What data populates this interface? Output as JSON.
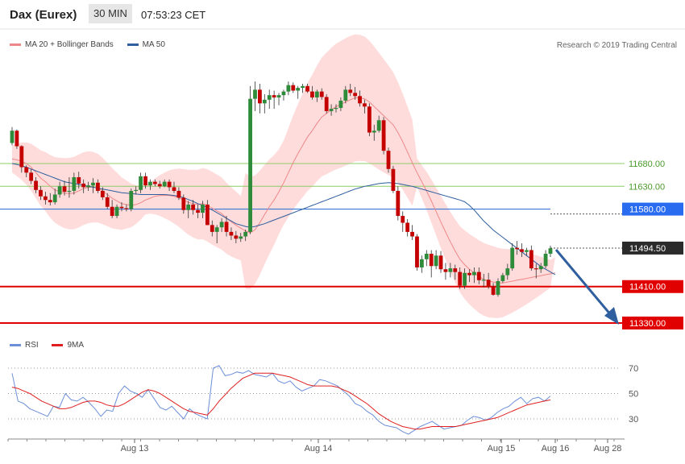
{
  "header": {
    "symbol": "Dax (Eurex)",
    "timeframe": "30 MIN",
    "time": "07:53:23 CET"
  },
  "legend": {
    "bands": "MA 20 + Bollinger Bands",
    "ma50": "MA 50",
    "credit": "Research © 2019 Trading Central"
  },
  "rsi_legend": {
    "rsi": "RSI",
    "ma9": "9MA"
  },
  "colors": {
    "up": "#2e8b3a",
    "down": "#c40000",
    "bands_fill": "#ffd6d6",
    "ma20": "#ee8888",
    "ma50": "#2f5f9e",
    "green_line": "#8ccc66",
    "blue_line": "#3a78d8",
    "red_line": "#e00000",
    "rsi": "#6b8fd8",
    "rsi_ma": "#e02020",
    "arrow": "#2f5f9e"
  },
  "chart_data": [
    {
      "type": "candlestick",
      "title": "Dax (Eurex) 30 MIN",
      "ylim": [
        11230,
        11925
      ],
      "x_ticks": [
        "Aug 13",
        "Aug 14",
        "Aug 15",
        "Aug 16",
        "Aug 28"
      ],
      "levels": [
        {
          "value": 11680.0,
          "label": "11680.00",
          "style": "green"
        },
        {
          "value": 11630.0,
          "label": "11630.00",
          "style": "green"
        },
        {
          "value": 11580.0,
          "label": "11580.00",
          "style": "blue"
        },
        {
          "value": 11494.5,
          "label": "11494.50",
          "style": "current"
        },
        {
          "value": 11410.0,
          "label": "11410.00",
          "style": "red"
        },
        {
          "value": 11330.0,
          "label": "11330.00",
          "style": "red"
        }
      ],
      "candles": [
        [
          11725,
          11760,
          11720,
          11752
        ],
        [
          11752,
          11755,
          11712,
          11718
        ],
        [
          11718,
          11720,
          11660,
          11672
        ],
        [
          11672,
          11676,
          11650,
          11660
        ],
        [
          11660,
          11668,
          11635,
          11642
        ],
        [
          11642,
          11650,
          11615,
          11622
        ],
        [
          11622,
          11630,
          11600,
          11608
        ],
        [
          11608,
          11618,
          11590,
          11600
        ],
        [
          11600,
          11615,
          11588,
          11595
        ],
        [
          11595,
          11625,
          11590,
          11612
        ],
        [
          11612,
          11640,
          11605,
          11630
        ],
        [
          11630,
          11642,
          11610,
          11618
        ],
        [
          11618,
          11650,
          11605,
          11620
        ],
        [
          11620,
          11660,
          11612,
          11650
        ],
        [
          11650,
          11662,
          11625,
          11636
        ],
        [
          11636,
          11645,
          11615,
          11628
        ],
        [
          11628,
          11640,
          11620,
          11632
        ],
        [
          11632,
          11648,
          11615,
          11638
        ],
        [
          11638,
          11645,
          11615,
          11620
        ],
        [
          11620,
          11628,
          11600,
          11606
        ],
        [
          11606,
          11615,
          11580,
          11585
        ],
        [
          11585,
          11600,
          11560,
          11565
        ],
        [
          11565,
          11590,
          11560,
          11585
        ],
        [
          11585,
          11595,
          11575,
          11582
        ],
        [
          11582,
          11590,
          11575,
          11580
        ],
        [
          11580,
          11625,
          11575,
          11620
        ],
        [
          11620,
          11630,
          11612,
          11622
        ],
        [
          11622,
          11660,
          11615,
          11652
        ],
        [
          11652,
          11660,
          11625,
          11632
        ],
        [
          11632,
          11645,
          11622,
          11640
        ],
        [
          11640,
          11645,
          11630,
          11635
        ],
        [
          11635,
          11642,
          11625,
          11630
        ],
        [
          11630,
          11645,
          11628,
          11640
        ],
        [
          11640,
          11645,
          11620,
          11628
        ],
        [
          11628,
          11640,
          11615,
          11620
        ],
        [
          11620,
          11628,
          11600,
          11605
        ],
        [
          11605,
          11612,
          11570,
          11578
        ],
        [
          11578,
          11598,
          11560,
          11590
        ],
        [
          11590,
          11600,
          11568,
          11578
        ],
        [
          11578,
          11590,
          11560,
          11572
        ],
        [
          11572,
          11598,
          11560,
          11590
        ],
        [
          11590,
          11600,
          11545,
          11545
        ],
        [
          11545,
          11555,
          11520,
          11530
        ],
        [
          11530,
          11545,
          11505,
          11540
        ],
        [
          11540,
          11560,
          11530,
          11552
        ],
        [
          11552,
          11565,
          11520,
          11530
        ],
        [
          11530,
          11540,
          11512,
          11522
        ],
        [
          11522,
          11532,
          11505,
          11515
        ],
        [
          11515,
          11528,
          11508,
          11520
        ],
        [
          11520,
          11535,
          11510,
          11530
        ],
        [
          11530,
          11850,
          11525,
          11822
        ],
        [
          11822,
          11860,
          11795,
          11842
        ],
        [
          11842,
          11855,
          11790,
          11812
        ],
        [
          11812,
          11832,
          11790,
          11820
        ],
        [
          11820,
          11842,
          11800,
          11830
        ],
        [
          11830,
          11840,
          11800,
          11825
        ],
        [
          11825,
          11835,
          11808,
          11830
        ],
        [
          11830,
          11842,
          11818,
          11838
        ],
        [
          11838,
          11860,
          11830,
          11852
        ],
        [
          11852,
          11858,
          11835,
          11840
        ],
        [
          11840,
          11850,
          11822,
          11846
        ],
        [
          11846,
          11855,
          11835,
          11850
        ],
        [
          11850,
          11855,
          11835,
          11838
        ],
        [
          11838,
          11850,
          11820,
          11825
        ],
        [
          11825,
          11842,
          11815,
          11838
        ],
        [
          11838,
          11845,
          11820,
          11826
        ],
        [
          11826,
          11832,
          11790,
          11795
        ],
        [
          11795,
          11810,
          11785,
          11800
        ],
        [
          11800,
          11810,
          11792,
          11802
        ],
        [
          11802,
          11825,
          11795,
          11818
        ],
        [
          11818,
          11850,
          11812,
          11842
        ],
        [
          11842,
          11855,
          11828,
          11835
        ],
        [
          11835,
          11848,
          11820,
          11828
        ],
        [
          11828,
          11840,
          11805,
          11812
        ],
        [
          11812,
          11820,
          11790,
          11805
        ],
        [
          11805,
          11812,
          11740,
          11748
        ],
        [
          11748,
          11765,
          11730,
          11752
        ],
        [
          11752,
          11785,
          11748,
          11775
        ],
        [
          11775,
          11782,
          11700,
          11708
        ],
        [
          11708,
          11715,
          11660,
          11668
        ],
        [
          11668,
          11675,
          11615,
          11620
        ],
        [
          11620,
          11630,
          11555,
          11565
        ],
        [
          11565,
          11575,
          11530,
          11550
        ],
        [
          11550,
          11558,
          11520,
          11530
        ],
        [
          11530,
          11545,
          11512,
          11520
        ],
        [
          11520,
          11525,
          11445,
          11452
        ],
        [
          11452,
          11478,
          11440,
          11470
        ],
        [
          11470,
          11490,
          11455,
          11482
        ],
        [
          11482,
          11490,
          11430,
          11455
        ],
        [
          11455,
          11490,
          11448,
          11478
        ],
        [
          11478,
          11488,
          11440,
          11448
        ],
        [
          11448,
          11462,
          11425,
          11442
        ],
        [
          11442,
          11462,
          11430,
          11450
        ],
        [
          11450,
          11458,
          11425,
          11442
        ],
        [
          11442,
          11452,
          11405,
          11412
        ],
        [
          11412,
          11450,
          11405,
          11440
        ],
        [
          11440,
          11448,
          11420,
          11435
        ],
        [
          11435,
          11452,
          11418,
          11442
        ],
        [
          11442,
          11452,
          11415,
          11424
        ],
        [
          11424,
          11438,
          11408,
          11425
        ],
        [
          11425,
          11440,
          11405,
          11410
        ],
        [
          11410,
          11418,
          11390,
          11392
        ],
        [
          11392,
          11428,
          11388,
          11422
        ],
        [
          11422,
          11440,
          11418,
          11435
        ],
        [
          11435,
          11460,
          11425,
          11450
        ],
        [
          11450,
          11505,
          11445,
          11495
        ],
        [
          11495,
          11510,
          11480,
          11492
        ],
        [
          11492,
          11505,
          11475,
          11486
        ],
        [
          11486,
          11495,
          11478,
          11490
        ],
        [
          11490,
          11500,
          11445,
          11450
        ],
        [
          11450,
          11460,
          11428,
          11448
        ],
        [
          11448,
          11462,
          11440,
          11455
        ],
        [
          11455,
          11490,
          11450,
          11482
        ],
        [
          11482,
          11500,
          11475,
          11494
        ]
      ],
      "ma20": [
        11690,
        11688,
        11685,
        11680,
        11672,
        11660,
        11648,
        11640,
        11630,
        11622,
        11618,
        11615,
        11614,
        11615,
        11620,
        11625,
        11628,
        11628,
        11626,
        11620,
        11612,
        11604,
        11598,
        11592,
        11590,
        11588,
        11590,
        11594,
        11600,
        11604,
        11608,
        11610,
        11610,
        11610,
        11608,
        11605,
        11600,
        11595,
        11592,
        11590,
        11592,
        11588,
        11582,
        11576,
        11570,
        11560,
        11552,
        11545,
        11538,
        11532,
        11528,
        11535,
        11550,
        11568,
        11585,
        11600,
        11618,
        11638,
        11660,
        11682,
        11702,
        11720,
        11738,
        11752,
        11768,
        11782,
        11790,
        11798,
        11805,
        11810,
        11815,
        11820,
        11824,
        11824,
        11822,
        11815,
        11805,
        11795,
        11785,
        11775,
        11765,
        11748,
        11728,
        11705,
        11682,
        11660,
        11640,
        11620,
        11598,
        11575,
        11552,
        11530,
        11508,
        11488,
        11470,
        11458,
        11448,
        11440,
        11432,
        11426,
        11422,
        11420,
        11418,
        11418,
        11420,
        11422,
        11424,
        11426,
        11428,
        11430,
        11432,
        11434,
        11436,
        11438,
        11440
      ],
      "ma50": [
        11680,
        11678,
        11675,
        11672,
        11668,
        11664,
        11660,
        11656,
        11652,
        11648,
        11644,
        11640,
        11638,
        11636,
        11634,
        11632,
        11630,
        11628,
        11626,
        11624,
        11622,
        11620,
        11618,
        11616,
        11615,
        11614,
        11613,
        11612,
        11612,
        11612,
        11612,
        11612,
        11612,
        11611,
        11610,
        11608,
        11605,
        11601,
        11597,
        11592,
        11588,
        11583,
        11578,
        11572,
        11566,
        11560,
        11554,
        11548,
        11545,
        11542,
        11540,
        11542,
        11545,
        11548,
        11552,
        11556,
        11560,
        11564,
        11568,
        11572,
        11576,
        11580,
        11584,
        11588,
        11592,
        11596,
        11600,
        11604,
        11608,
        11612,
        11616,
        11620,
        11624,
        11627,
        11630,
        11632,
        11634,
        11636,
        11637,
        11638,
        11637,
        11636,
        11634,
        11632,
        11630,
        11627,
        11624,
        11621,
        11618,
        11615,
        11612,
        11609,
        11606,
        11603,
        11600,
        11596,
        11588,
        11578,
        11566,
        11554,
        11544,
        11534,
        11526,
        11518,
        11510,
        11502,
        11494,
        11486,
        11478,
        11470,
        11462,
        11454,
        11448,
        11442,
        11436
      ]
    },
    {
      "type": "line",
      "title": "RSI",
      "ylim": [
        15,
        80
      ],
      "y_ticks": [
        "70",
        "50",
        "30"
      ],
      "series": [
        {
          "name": "RSI",
          "values": [
            66,
            44,
            42,
            38,
            36,
            34,
            32,
            40,
            39,
            50,
            45,
            44,
            47,
            43,
            38,
            32,
            37,
            36,
            50,
            56,
            52,
            50,
            47,
            53,
            46,
            39,
            37,
            40,
            35,
            30,
            38,
            34,
            32,
            30,
            70,
            72,
            64,
            65,
            67,
            66,
            68,
            65,
            64,
            63,
            66,
            60,
            58,
            60,
            55,
            52,
            54,
            56,
            61,
            60,
            58,
            56,
            52,
            48,
            42,
            40,
            36,
            33,
            28,
            25,
            24,
            23,
            20,
            18,
            21,
            24,
            26,
            28,
            25,
            22,
            23,
            24,
            25,
            29,
            32,
            31,
            29,
            31,
            35,
            38,
            40,
            44,
            47,
            42,
            46,
            47,
            44,
            48
          ],
          "series_note_": ""
        },
        {
          "name": "9MA",
          "values": [
            55,
            54,
            52,
            50,
            47,
            44,
            42,
            40,
            38,
            38,
            39,
            41,
            43,
            44,
            44,
            43,
            41,
            40,
            40,
            42,
            45,
            48,
            51,
            53,
            52,
            50,
            47,
            44,
            41,
            38,
            36,
            35,
            34,
            33,
            38,
            44,
            49,
            54,
            58,
            62,
            64,
            66,
            66,
            66,
            66,
            65,
            64,
            63,
            61,
            59,
            57,
            56,
            56,
            56,
            56,
            55,
            53,
            51,
            48,
            45,
            42,
            38,
            34,
            31,
            28,
            26,
            24,
            23,
            22,
            22,
            23,
            24,
            24,
            24,
            24,
            24,
            25,
            26,
            27,
            28,
            29,
            30,
            31,
            33,
            35,
            37,
            39,
            41,
            42,
            43,
            44,
            45
          ]
        }
      ]
    }
  ]
}
